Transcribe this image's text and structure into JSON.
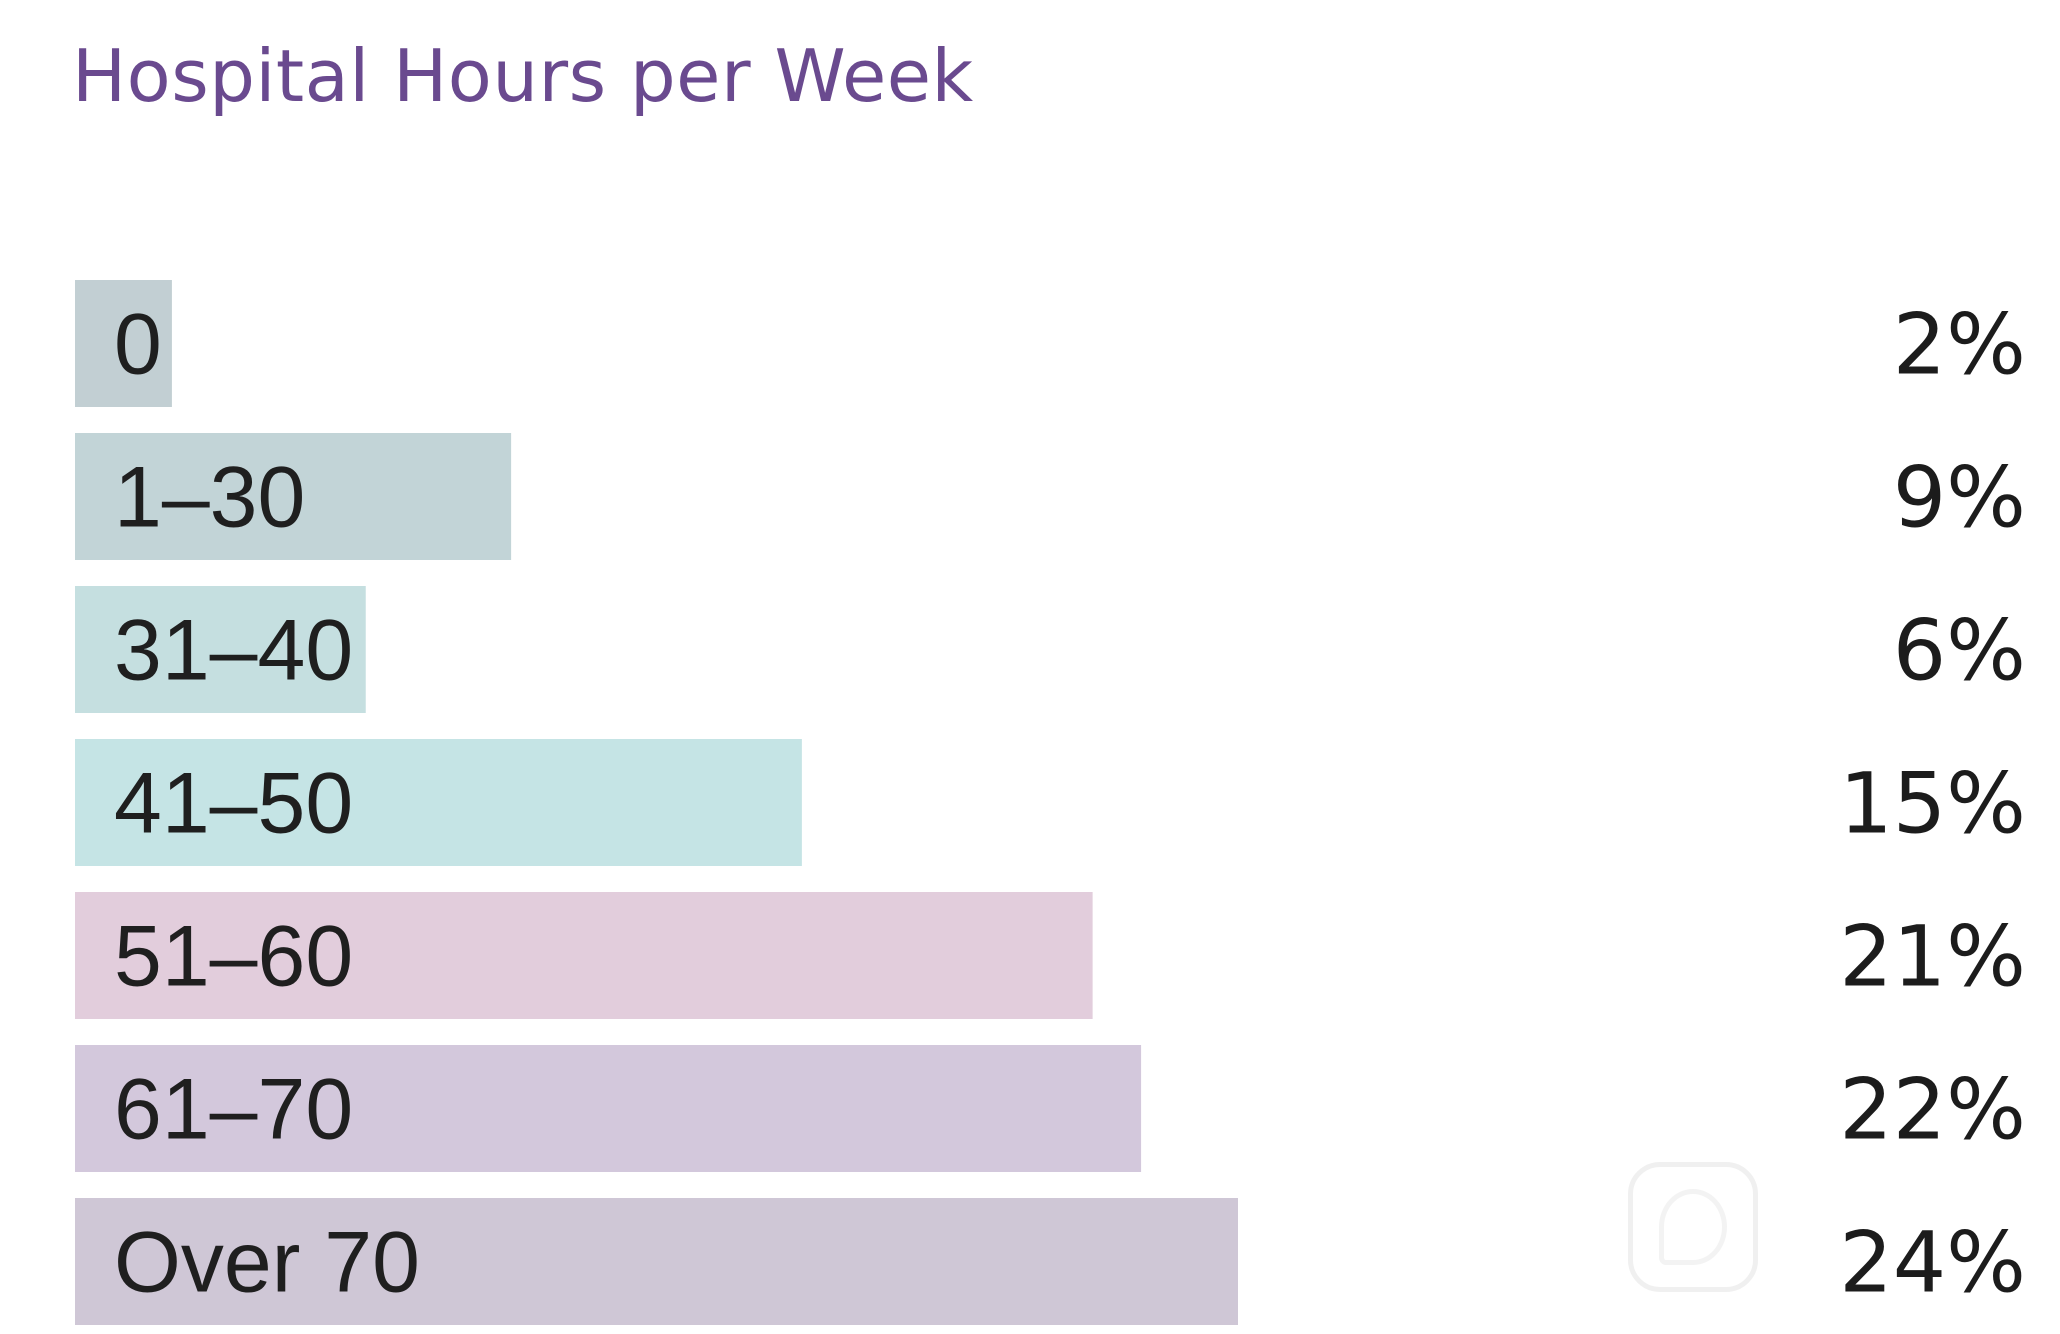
{
  "chart_data": {
    "type": "bar",
    "orientation": "horizontal",
    "title": "Hospital Hours per Week",
    "categories": [
      "0",
      "1–30",
      "31–40",
      "41–50",
      "51–60",
      "61–70",
      "Over 70"
    ],
    "values": [
      2,
      9,
      6,
      15,
      21,
      22,
      24
    ],
    "value_labels": [
      "2%",
      "9%",
      "6%",
      "15%",
      "21%",
      "22%",
      "24%"
    ],
    "unit": "%",
    "xlim": [
      0,
      24
    ],
    "grid": false,
    "legend": "none"
  },
  "colors": {
    "title": "#6a4a8f",
    "bars": [
      "#c2cfd3",
      "#c2d4d7",
      "#c5dfe0",
      "#c5e4e5",
      "#e2cddc",
      "#d3c8dc",
      "#cfc7d6"
    ],
    "label_text": "#1f1f1f",
    "value_text": "#1c1c1c"
  },
  "icons": {
    "watermark": "brand-logo-icon"
  }
}
